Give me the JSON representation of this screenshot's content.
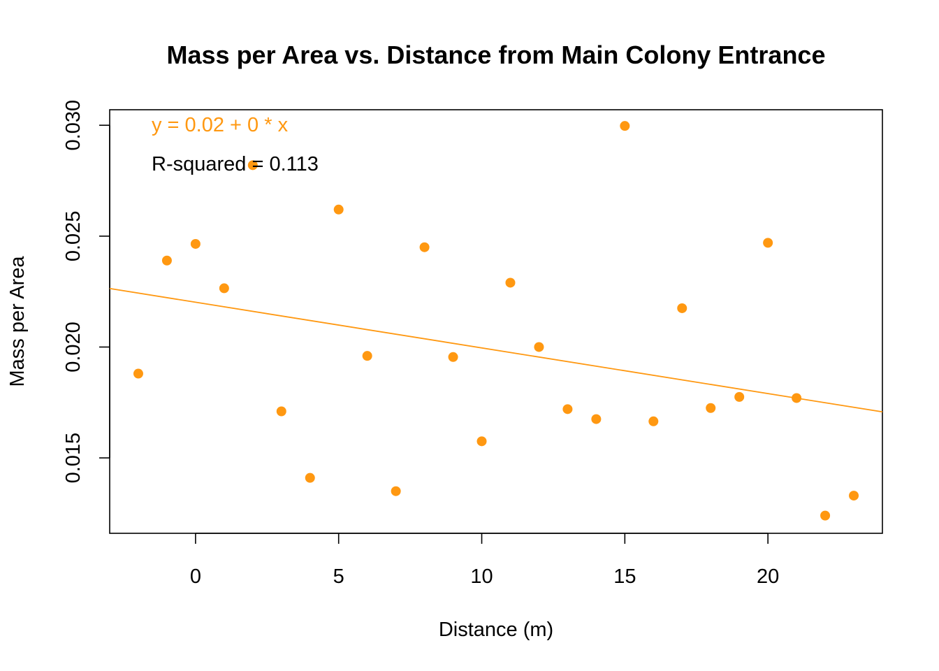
{
  "colors": {
    "accent": "#FF9811",
    "text": "#000000",
    "background": "#FFFFFF"
  },
  "chart_data": {
    "type": "scatter",
    "title": "Mass per Area vs. Distance from Main Colony Entrance",
    "xlabel": "Distance (m)",
    "ylabel": "Mass per Area",
    "xlim": [
      -3,
      24
    ],
    "ylim": [
      0.0116,
      0.0307
    ],
    "x_ticks": [
      0,
      5,
      10,
      15,
      20
    ],
    "x_tick_labels": [
      "0",
      "5",
      "10",
      "15",
      "20"
    ],
    "y_ticks": [
      0.015,
      0.02,
      0.025,
      0.03
    ],
    "y_tick_labels": [
      "0.015",
      "0.020",
      "0.025",
      "0.030"
    ],
    "grid": false,
    "series": [
      {
        "x": [
          -2,
          -1,
          0,
          1,
          2,
          3,
          4,
          5,
          6,
          7,
          8,
          9,
          10,
          11,
          12,
          13,
          14,
          15,
          16,
          17,
          18,
          19,
          20,
          21,
          22,
          23
        ],
        "y": [
          0.0188,
          0.0239,
          0.02465,
          0.02265,
          0.0282,
          0.0171,
          0.0141,
          0.0262,
          0.0196,
          0.0135,
          0.0245,
          0.01955,
          0.01575,
          0.0229,
          0.02,
          0.0172,
          0.01675,
          0.02997,
          0.01665,
          0.02175,
          0.01725,
          0.01775,
          0.0247,
          0.0177,
          0.0124,
          0.0133
        ]
      }
    ],
    "fit_line": {
      "intercept": 0.02202,
      "slope": -0.000206
    },
    "annotations": [
      {
        "text": "y = 0.02 + 0 * x"
      },
      {
        "text": "R-squared = 0.113"
      }
    ]
  }
}
